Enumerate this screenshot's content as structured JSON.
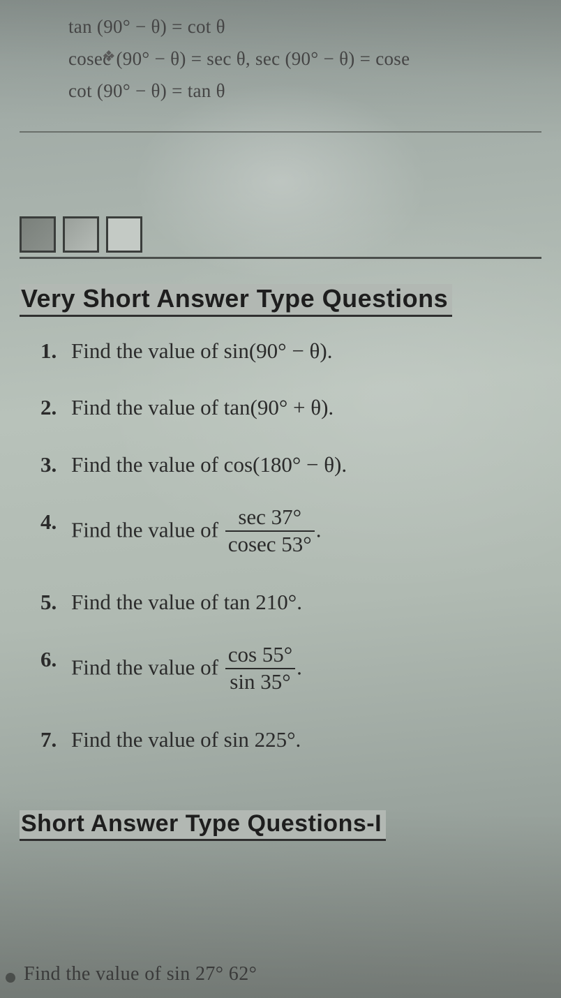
{
  "top": {
    "line1": "tan (90° − θ) = cot θ",
    "line2": "cosec (90° − θ) = sec θ,   sec (90° − θ) = cose",
    "line3": "cot (90° − θ) = tan θ"
  },
  "boxes": {
    "count": 3
  },
  "sections": {
    "vsa_title": "Very Short Answer Type Questions",
    "sa1_title": "Short Answer Type Questions-I"
  },
  "questions": [
    {
      "n": "1.",
      "text_a": "Find the value of sin(90° − θ)."
    },
    {
      "n": "2.",
      "text_a": "Find the value of tan(90° + θ)."
    },
    {
      "n": "3.",
      "text_a": "Find the value of cos(180° − θ)."
    },
    {
      "n": "4.",
      "text_a": "Find the value of ",
      "frac_n": "sec 37°",
      "frac_d": "cosec 53°",
      "after": "."
    },
    {
      "n": "5.",
      "text_a": "Find the value of tan 210°."
    },
    {
      "n": "6.",
      "text_a": "Find the value of ",
      "frac_n": "cos 55°",
      "frac_d": "sin 35°",
      "after": "."
    },
    {
      "n": "7.",
      "text_a": "Find the value of sin 225°."
    }
  ],
  "bottom_cut": "Find the value of sin 27°     62°",
  "colors": {
    "text": "#2a2a2a",
    "title_underline": "#2f2f2f",
    "rule": "#4a4e4b",
    "box_border": "#3a3d3b"
  },
  "fonts": {
    "body_family": "Georgia / Times",
    "title_family": "Comic / handwritten",
    "body_size_pt": 23,
    "title_size_pt": 27
  }
}
